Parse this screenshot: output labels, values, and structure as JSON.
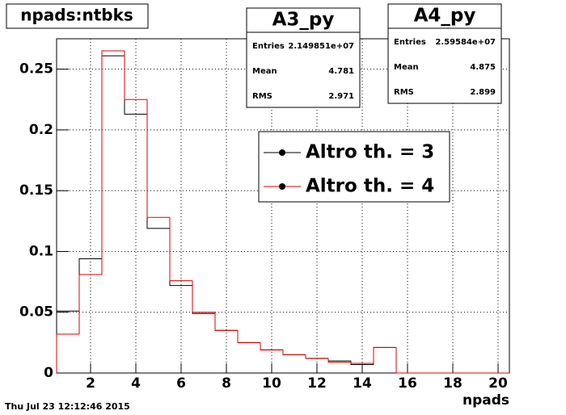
{
  "chart_data": {
    "type": "histogram",
    "title": "npads:ntbks",
    "xlabel": "npads",
    "timestamp": "Thu Jul 23 12:12:46 2015",
    "bins": [
      0.5,
      1.5,
      2.5,
      3.5,
      4.5,
      5.5,
      6.5,
      7.5,
      8.5,
      9.5,
      10.5,
      11.5,
      12.5,
      13.5,
      14.5,
      15.5,
      16.5,
      17.5,
      18.5,
      19.5,
      20.5
    ],
    "series": [
      {
        "name": "Altro th. = 3",
        "color": "#000000",
        "values": [
          0.051,
          0.094,
          0.261,
          0.213,
          0.119,
          0.072,
          0.049,
          0.035,
          0.025,
          0.019,
          0.015,
          0.012,
          0.01,
          0.007,
          0.021,
          0,
          0,
          0,
          0,
          0
        ]
      },
      {
        "name": "Altro th. = 4",
        "color": "#e00000",
        "values": [
          0.032,
          0.081,
          0.265,
          0.225,
          0.128,
          0.076,
          0.05,
          0.035,
          0.025,
          0.019,
          0.015,
          0.012,
          0.009,
          0.008,
          0.021,
          0,
          0,
          0,
          0,
          0
        ]
      }
    ],
    "xlim": [
      0.5,
      20.5
    ],
    "ylim": [
      0,
      0.275
    ],
    "xticks": [
      2,
      4,
      6,
      8,
      10,
      12,
      14,
      16,
      18,
      20
    ],
    "yticks": [
      0,
      0.05,
      0.1,
      0.15,
      0.2,
      0.25
    ],
    "grid": true,
    "stats": [
      {
        "name": "A3_py",
        "rows": [
          [
            "Entries",
            "2.149851e+07"
          ],
          [
            "Mean",
            "4.781"
          ],
          [
            "RMS",
            "2.971"
          ]
        ]
      },
      {
        "name": "A4_py",
        "rows": [
          [
            "Entries",
            "2.59584e+07"
          ],
          [
            "Mean",
            "4.875"
          ],
          [
            "RMS",
            "2.899"
          ]
        ]
      }
    ]
  }
}
